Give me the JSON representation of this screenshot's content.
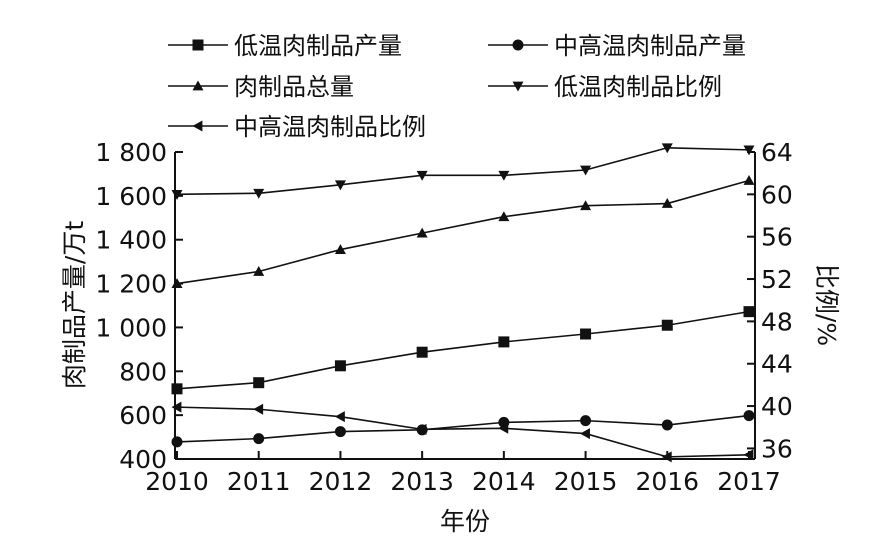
{
  "chart_data": {
    "type": "line",
    "xlabel": "年份",
    "ylabel": "肉制品产量/万t",
    "y2label": "比例/%",
    "x": [
      "2010",
      "2011",
      "2012",
      "2013",
      "2014",
      "2015",
      "2016",
      "2017"
    ],
    "ylim": [
      400,
      1800
    ],
    "yticks": [
      "400",
      "600",
      "800",
      "1 000",
      "1 200",
      "1 400",
      "1 600",
      "1 800"
    ],
    "y2lim": [
      35,
      64
    ],
    "y2ticks": [
      "36",
      "40",
      "44",
      "48",
      "52",
      "56",
      "60",
      "64"
    ],
    "legend_position": "top",
    "grid": false,
    "series": [
      {
        "name": "低温肉制品产量",
        "axis": "left",
        "marker": "square",
        "values": [
          720,
          748,
          825,
          887,
          934,
          970,
          1010,
          1072
        ]
      },
      {
        "name": "中高温肉制品产量",
        "axis": "left",
        "marker": "circle",
        "values": [
          478,
          493,
          525,
          533,
          567,
          575,
          555,
          598
        ]
      },
      {
        "name": "肉制品总量",
        "axis": "left",
        "marker": "triangle-up",
        "values": [
          1200,
          1255,
          1355,
          1430,
          1505,
          1555,
          1565,
          1670
        ]
      },
      {
        "name": "低温肉制品比例",
        "axis": "right",
        "marker": "triangle-down",
        "values": [
          60.0,
          60.1,
          60.9,
          61.8,
          61.8,
          62.3,
          64.4,
          64.2
        ]
      },
      {
        "name": "中高温肉制品比例",
        "axis": "right",
        "marker": "triangle-left",
        "values": [
          39.9,
          39.7,
          39.0,
          37.8,
          37.9,
          37.4,
          35.2,
          35.4
        ]
      }
    ]
  }
}
